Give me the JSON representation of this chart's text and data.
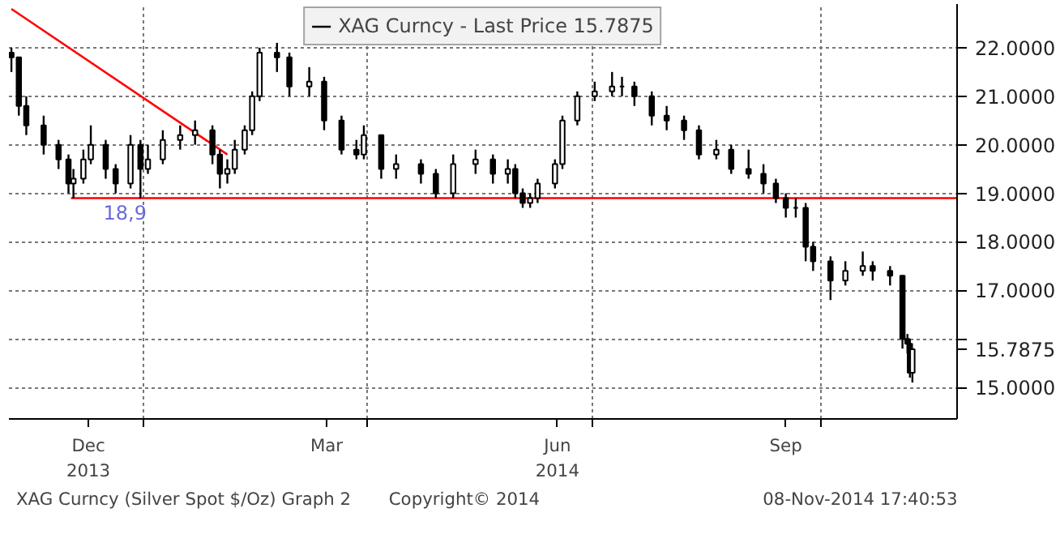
{
  "chart_data": {
    "type": "candlestick",
    "subtitle": "XAG Curncy (Silver Spot  $/Oz) Graph 2",
    "annotations": [
      "Copyright© 2014",
      "08-Nov-2014 17:40:53"
    ],
    "xlim": [
      "2013-11-08",
      "2014-11-25"
    ],
    "xticks": [
      {
        "value": "2013-12-10",
        "label": "Dec\n2013"
      },
      {
        "value": "2014-03-16",
        "label": "Mar"
      },
      {
        "value": "2014-06-17",
        "label": "Jun\n2014"
      },
      {
        "value": "2014-09-17",
        "label": "Sep"
      },
      {
        "value": "2014-01-01",
        "label": null
      },
      {
        "value": "2014-04-01",
        "label": null
      },
      {
        "value": "2014-07-01",
        "label": null
      },
      {
        "value": "2014-10-01",
        "label": null
      }
    ],
    "ylim": [
      14.35,
      22.9
    ],
    "yticks": [
      {
        "value": 15,
        "label": "15.0000"
      },
      {
        "value": 15.7875,
        "label": "15.7875"
      },
      {
        "value": 16,
        "label": null
      },
      {
        "value": 17,
        "label": "17.0000"
      },
      {
        "value": 18,
        "label": "18.0000"
      },
      {
        "value": 19,
        "label": "19.0000"
      },
      {
        "value": 20,
        "label": "20.0000"
      },
      {
        "value": 21,
        "label": "21.0000"
      },
      {
        "value": 22,
        "label": "22.0000"
      }
    ],
    "grid": true,
    "legend": "top",
    "series": [
      {
        "name": "XAG Curncy - Last Price 15.7875",
        "color": "#000000",
        "x": [
          "2013-11-09",
          "2013-11-12",
          "2013-11-15",
          "2013-11-22",
          "2013-11-28",
          "2013-12-02",
          "2013-12-04",
          "2013-12-08",
          "2013-12-11",
          "2013-12-17",
          "2013-12-21",
          "2013-12-27",
          "2013-12-31",
          "2014-01-03",
          "2014-01-09",
          "2014-01-16",
          "2014-01-22",
          "2014-01-29",
          "2014-02-01",
          "2014-02-04",
          "2014-02-07",
          "2014-02-11",
          "2014-02-14",
          "2014-02-17",
          "2014-02-24",
          "2014-03-01",
          "2014-03-09",
          "2014-03-15",
          "2014-03-22",
          "2014-03-28",
          "2014-03-31",
          "2014-04-07",
          "2014-04-13",
          "2014-04-23",
          "2014-04-29",
          "2014-05-06",
          "2014-05-15",
          "2014-05-22",
          "2014-05-28",
          "2014-05-31",
          "2014-06-03",
          "2014-06-06",
          "2014-06-09",
          "2014-06-16",
          "2014-06-19",
          "2014-06-25",
          "2014-07-02",
          "2014-07-09",
          "2014-07-13",
          "2014-07-18",
          "2014-07-25",
          "2014-07-31",
          "2014-08-07",
          "2014-08-13",
          "2014-08-20",
          "2014-08-26",
          "2014-09-02",
          "2014-09-08",
          "2014-09-13",
          "2014-09-17",
          "2014-09-21",
          "2014-09-25",
          "2014-09-28",
          "2014-10-05",
          "2014-10-11",
          "2014-10-18",
          "2014-10-22",
          "2014-10-29",
          "2014-11-03",
          "2014-11-05",
          "2014-11-06",
          "2014-11-07"
        ],
        "ohlc": [
          [
            21.9,
            22.0,
            21.5,
            21.8
          ],
          [
            21.8,
            21.8,
            20.6,
            20.8
          ],
          [
            20.8,
            21.0,
            20.2,
            20.4
          ],
          [
            20.4,
            20.6,
            19.8,
            20.0
          ],
          [
            20.0,
            20.1,
            19.5,
            19.7
          ],
          [
            19.7,
            19.8,
            19.0,
            19.2
          ],
          [
            19.2,
            19.5,
            18.9,
            19.3
          ],
          [
            19.3,
            19.9,
            19.2,
            19.7
          ],
          [
            19.7,
            20.4,
            19.6,
            20.0
          ],
          [
            20.0,
            20.1,
            19.3,
            19.5
          ],
          [
            19.5,
            19.6,
            19.0,
            19.2
          ],
          [
            19.2,
            20.2,
            19.1,
            20.0
          ],
          [
            20.0,
            20.1,
            18.9,
            19.5
          ],
          [
            19.5,
            20.0,
            19.4,
            19.7
          ],
          [
            19.7,
            20.3,
            19.6,
            20.1
          ],
          [
            20.1,
            20.4,
            19.9,
            20.2
          ],
          [
            20.2,
            20.5,
            20.0,
            20.3
          ],
          [
            20.3,
            20.4,
            19.6,
            19.8
          ],
          [
            19.8,
            19.9,
            19.1,
            19.4
          ],
          [
            19.4,
            19.7,
            19.2,
            19.5
          ],
          [
            19.5,
            20.1,
            19.4,
            19.9
          ],
          [
            19.9,
            20.4,
            19.8,
            20.3
          ],
          [
            20.3,
            21.1,
            20.2,
            21.0
          ],
          [
            21.0,
            22.0,
            20.9,
            21.9
          ],
          [
            21.9,
            22.1,
            21.5,
            21.8
          ],
          [
            21.8,
            21.9,
            21.0,
            21.2
          ],
          [
            21.2,
            21.6,
            21.0,
            21.3
          ],
          [
            21.3,
            21.4,
            20.3,
            20.5
          ],
          [
            20.5,
            20.6,
            19.8,
            19.9
          ],
          [
            19.9,
            20.1,
            19.7,
            19.8
          ],
          [
            19.8,
            20.4,
            19.7,
            20.2
          ],
          [
            20.2,
            20.2,
            19.3,
            19.5
          ],
          [
            19.5,
            19.8,
            19.3,
            19.6
          ],
          [
            19.6,
            19.7,
            19.2,
            19.4
          ],
          [
            19.4,
            19.5,
            18.9,
            19.0
          ],
          [
            19.0,
            19.8,
            18.9,
            19.6
          ],
          [
            19.6,
            19.9,
            19.4,
            19.7
          ],
          [
            19.7,
            19.8,
            19.2,
            19.4
          ],
          [
            19.4,
            19.7,
            19.2,
            19.5
          ],
          [
            19.5,
            19.6,
            18.9,
            19.0
          ],
          [
            19.0,
            19.1,
            18.7,
            18.8
          ],
          [
            18.8,
            19.0,
            18.7,
            18.9
          ],
          [
            18.9,
            19.3,
            18.8,
            19.2
          ],
          [
            19.2,
            19.7,
            19.1,
            19.6
          ],
          [
            19.6,
            20.6,
            19.5,
            20.5
          ],
          [
            20.5,
            21.1,
            20.4,
            21.0
          ],
          [
            21.0,
            21.3,
            20.9,
            21.1
          ],
          [
            21.1,
            21.5,
            21.0,
            21.2
          ],
          [
            21.2,
            21.4,
            21.0,
            21.2
          ],
          [
            21.2,
            21.3,
            20.8,
            21.0
          ],
          [
            21.0,
            21.1,
            20.4,
            20.6
          ],
          [
            20.6,
            20.8,
            20.3,
            20.5
          ],
          [
            20.5,
            20.6,
            20.1,
            20.3
          ],
          [
            20.3,
            20.4,
            19.7,
            19.8
          ],
          [
            19.8,
            20.1,
            19.7,
            19.9
          ],
          [
            19.9,
            20.0,
            19.4,
            19.5
          ],
          [
            19.5,
            19.9,
            19.3,
            19.4
          ],
          [
            19.4,
            19.6,
            19.0,
            19.2
          ],
          [
            19.2,
            19.3,
            18.8,
            18.9
          ],
          [
            18.9,
            19.0,
            18.5,
            18.7
          ],
          [
            18.7,
            18.9,
            18.5,
            18.7
          ],
          [
            18.7,
            18.8,
            17.6,
            17.9
          ],
          [
            17.9,
            18.0,
            17.4,
            17.6
          ],
          [
            17.6,
            17.7,
            16.8,
            17.2
          ],
          [
            17.2,
            17.6,
            17.1,
            17.4
          ],
          [
            17.4,
            17.8,
            17.3,
            17.5
          ],
          [
            17.5,
            17.6,
            17.2,
            17.4
          ],
          [
            17.4,
            17.5,
            17.1,
            17.3
          ],
          [
            17.3,
            17.3,
            15.8,
            16.0
          ],
          [
            16.0,
            16.1,
            15.7,
            15.9
          ],
          [
            15.9,
            16.0,
            15.2,
            15.3
          ],
          [
            15.3,
            15.8,
            15.1,
            15.7875
          ]
        ]
      },
      {
        "type": "line",
        "color": "#ff0000",
        "x": [
          "2013-11-09",
          "2014-02-04"
        ],
        "values": [
          22.8,
          19.8
        ]
      },
      {
        "type": "line",
        "name": "18,9",
        "color": "#ff0000",
        "x": [
          "2013-12-03",
          "2014-11-25"
        ],
        "values": [
          18.9,
          18.9
        ]
      }
    ]
  }
}
